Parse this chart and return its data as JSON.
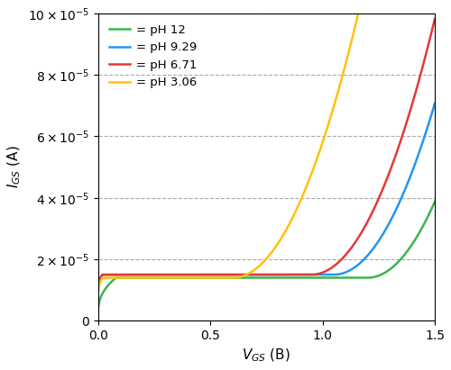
{
  "xlabel": "V_{GS} (B)",
  "ylabel": "I_{GS} (A)",
  "xlim": [
    0,
    1.5
  ],
  "ylim": [
    0,
    0.0001
  ],
  "yticks": [
    0,
    2e-05,
    4e-05,
    6e-05,
    8e-05,
    0.0001
  ],
  "xticks": [
    0,
    0.5,
    1.0,
    1.5
  ],
  "curves": [
    {
      "label": "= pH 12",
      "color": "#3cb54a",
      "vth": 1.2,
      "k": 0.00055,
      "i_flat": 1.4e-05,
      "i_zero": 2e-06,
      "vflat": 0.08
    },
    {
      "label": "= pH 9.29",
      "color": "#2196f3",
      "vth": 1.05,
      "k": 0.00055,
      "i_flat": 1.5e-05,
      "i_zero": 1.1e-05,
      "vflat": 0.02
    },
    {
      "label": "= pH 6.71",
      "color": "#e53935",
      "vth": 0.95,
      "k": 0.00055,
      "i_flat": 1.5e-05,
      "i_zero": 1.1e-05,
      "vflat": 0.02
    },
    {
      "label": "= pH 3.06",
      "color": "#ffc107",
      "vth": 0.6,
      "k": 0.00055,
      "i_flat": 1.4e-05,
      "i_zero": 8e-06,
      "vflat": 0.02
    }
  ],
  "grid_color": "#aaaaaa",
  "line_width": 1.8,
  "figsize": [
    5.0,
    4.11
  ],
  "dpi": 100
}
